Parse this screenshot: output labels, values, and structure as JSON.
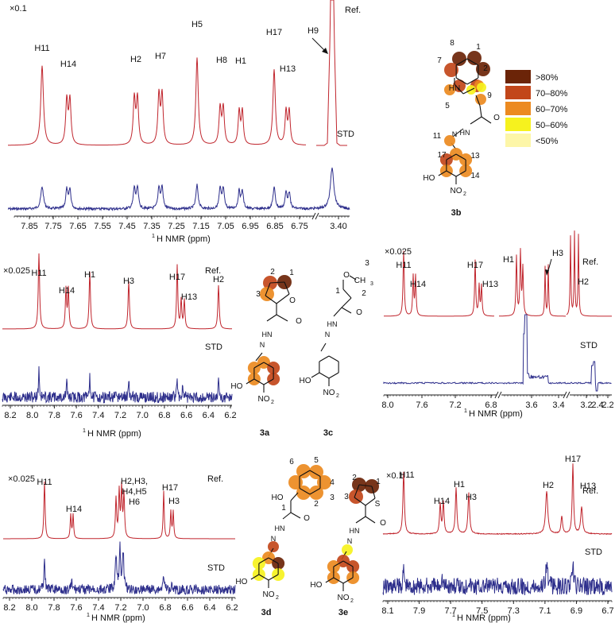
{
  "colors": {
    "ref": "#c0252d",
    "std": "#2e2f8c",
    "axis": "#222222",
    "legend": [
      "#6b2408",
      "#c2461a",
      "#ec8a20",
      "#f6f21e",
      "#fdf6a8"
    ]
  },
  "legend": {
    "labels": [
      ">80%",
      "70–80%",
      "60–70%",
      "50–60%",
      "<50%"
    ]
  },
  "chart_data": [
    {
      "type": "line",
      "panel": "3b",
      "scale_note": "×0.1",
      "ref_label": "Ref.",
      "std_label": "STD",
      "xlabel_prefix": "1",
      "xlabel": "H NMR (ppm)",
      "ticks": [
        "7.85",
        "7.75",
        "7.65",
        "7.55",
        "7.45",
        "7.35",
        "7.25",
        "7.15",
        "7.05",
        "6.95",
        "6.85",
        "6.75",
        "3.40"
      ],
      "axis_break": true,
      "ref_peaks": [
        {
          "label": "H11",
          "ppm": 7.83
        },
        {
          "label": "H14",
          "ppm": 7.67
        },
        {
          "label": "H2",
          "ppm": 7.36
        },
        {
          "label": "H7",
          "ppm": 7.27
        },
        {
          "label": "H5",
          "ppm": 7.12
        },
        {
          "label": "H8",
          "ppm": 6.99
        },
        {
          "label": "H1",
          "ppm": 6.91
        },
        {
          "label": "H17",
          "ppm": 6.77
        },
        {
          "label": "H13",
          "ppm": 6.71
        },
        {
          "label": "H9",
          "ppm": 3.4
        }
      ],
      "structure_label": "3b",
      "structure_numbers": [
        "8",
        "1",
        "7",
        "2",
        "9",
        "5",
        "11",
        "17",
        "13",
        "14"
      ],
      "heteroatom_labels": [
        "HN",
        "O",
        "HN",
        "N",
        "HO",
        "NO",
        "2"
      ]
    },
    {
      "type": "line",
      "panel": "3a",
      "scale_note": "×0.025",
      "ref_label": "Ref.",
      "std_label": "STD",
      "xlabel_prefix": "1",
      "xlabel": "H NMR (ppm)",
      "ticks": [
        "8.2",
        "8.0",
        "7.8",
        "7.6",
        "7.4",
        "7.2",
        "7.0",
        "6.8",
        "6.6",
        "6.4",
        "6.2"
      ],
      "ref_peaks": [
        {
          "label": "H11",
          "ppm": 7.98
        },
        {
          "label": "H14",
          "ppm": 7.71
        },
        {
          "label": "H1",
          "ppm": 7.5
        },
        {
          "label": "H3",
          "ppm": 7.12
        },
        {
          "label": "H17",
          "ppm": 6.84
        },
        {
          "label": "H13",
          "ppm": 6.79
        },
        {
          "label": "H2",
          "ppm": 6.4
        }
      ],
      "structure_label": "3a",
      "structure_numbers": [
        "2",
        "1",
        "3"
      ],
      "heteroatom_labels": [
        "O",
        "HN",
        "N",
        "O",
        "HO",
        "NO",
        "2"
      ]
    },
    {
      "type": "line",
      "panel": "3c",
      "scale_note": "×0.025",
      "ref_label": "Ref.",
      "std_label": "STD",
      "xlabel_prefix": "1",
      "xlabel": "H NMR (ppm)",
      "ticks": [
        "8.0",
        "7.6",
        "7.2",
        "6.8",
        "3.6",
        "3.4",
        "3.2",
        "2.4",
        "2.2"
      ],
      "axis_break": true,
      "ref_peaks": [
        {
          "label": "H11",
          "ppm": 7.9
        },
        {
          "label": "H14",
          "ppm": 7.74
        },
        {
          "label": "H17",
          "ppm": 6.82
        },
        {
          "label": "H13",
          "ppm": 6.77
        },
        {
          "label": "H1",
          "ppm": 3.55
        },
        {
          "label": "H3",
          "ppm": 3.27
        },
        {
          "label": "H2",
          "ppm": 2.35
        }
      ],
      "structure_label": "3c",
      "structure_numbers": [
        "3",
        "1",
        "2"
      ],
      "heteroatom_labels": [
        "O",
        "CH",
        "3",
        "O",
        "HN",
        "N",
        "HO",
        "NO",
        "2"
      ]
    },
    {
      "type": "line",
      "panel": "3d",
      "scale_note": "×0.025",
      "ref_label": "Ref.",
      "std_label": "STD",
      "xlabel_prefix": "1",
      "xlabel": "H NMR (ppm)",
      "ticks": [
        "8.2",
        "8.0",
        "7.8",
        "7.6",
        "7.4",
        "7.2",
        "7.0",
        "6.8",
        "6.6",
        "6.4",
        "6.2"
      ],
      "ref_peaks": [
        {
          "label": "H11",
          "ppm": 7.96
        },
        {
          "label": "H14",
          "ppm": 7.68
        },
        {
          "label": "H2,H3,",
          "ppm": 7.18
        },
        {
          "label": "H17",
          "ppm": 6.72
        },
        {
          "label": "H3",
          "ppm": 6.66
        }
      ],
      "multiplet_lines": [
        "H4,H5",
        "H6"
      ],
      "structure_label": "3d",
      "structure_numbers": [
        "6",
        "5",
        "4",
        "1",
        "3",
        "2"
      ],
      "heteroatom_labels": [
        "HO",
        "O",
        "HN",
        "N",
        "HO",
        "NO",
        "2"
      ]
    },
    {
      "type": "line",
      "panel": "3e",
      "scale_note": "×0.1",
      "ref_label": "Ref.",
      "std_label": "STD",
      "xlabel_prefix": "1",
      "xlabel": "H NMR (ppm)",
      "ticks": [
        "8.1",
        "7.9",
        "7.7",
        "7.5",
        "7.3",
        "7.1",
        "6.9",
        "6.7"
      ],
      "ref_peaks": [
        {
          "label": "H11",
          "ppm": 8.0
        },
        {
          "label": "H14",
          "ppm": 7.71
        },
        {
          "label": "H1",
          "ppm": 7.62
        },
        {
          "label": "H3",
          "ppm": 7.55
        },
        {
          "label": "H2",
          "ppm": 7.02
        },
        {
          "label": "H17",
          "ppm": 6.83
        },
        {
          "label": "H13",
          "ppm": 6.77
        }
      ],
      "structure_label": "3e",
      "structure_numbers": [
        "2",
        "1",
        "3"
      ],
      "heteroatom_labels": [
        "S",
        "O",
        "HN",
        "N",
        "HO",
        "NO",
        "2"
      ]
    }
  ]
}
